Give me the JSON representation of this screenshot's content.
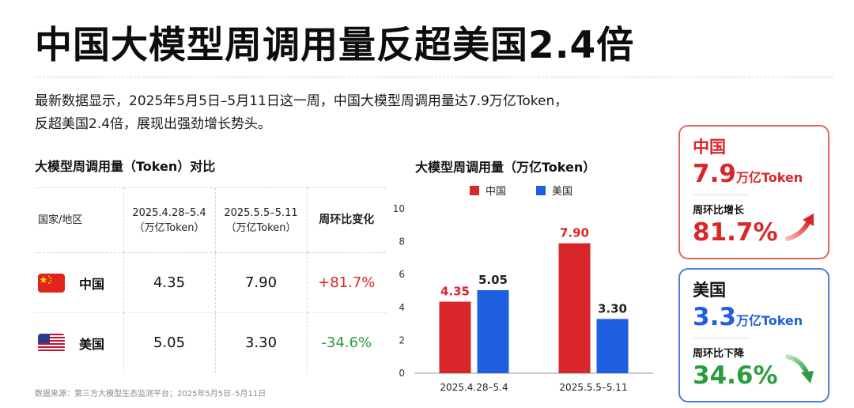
{
  "title": "中国大模型周调用量反超美国2.4倍",
  "description": {
    "line1": "最新数据显示，2025年5月5日–5月11日这一周，中国大模型周调用量达7.9万亿Token，",
    "line2": "反超美国2.4倍，展现出强劲增长势头。"
  },
  "table": {
    "title": "大模型周调用量（Token）对比",
    "headers": {
      "region": "国家/地区",
      "week1": "2025.4.28–5.4",
      "week1_unit": "（万亿Token）",
      "week2": "2025.5.5–5.11",
      "week2_unit": "（万亿Token）",
      "change": "周环比变化"
    },
    "rows": [
      {
        "country": "中国",
        "week1": "4.35",
        "week2": "7.90",
        "change": "+81.7%"
      },
      {
        "country": "美国",
        "week1": "5.05",
        "week2": "3.30",
        "change": "-34.6%"
      }
    ]
  },
  "source": "数据来源：第三方大模型生态监测平台；2025年5月5日–5月11日",
  "colors": {
    "china": "#d9262b",
    "usa": "#1d5fe0",
    "positive": "#d9262b",
    "negative": "#2a9d3c"
  },
  "chart_data": {
    "type": "bar",
    "title": "大模型周调用量（万亿Token）",
    "categories": [
      "2025.4.28–5.4",
      "2025.5.5–5.11"
    ],
    "series": [
      {
        "name": "中国",
        "values": [
          4.35,
          7.9
        ],
        "labels": [
          "4.35",
          "7.90"
        ],
        "color": "#d9262b"
      },
      {
        "name": "美国",
        "values": [
          5.05,
          3.3
        ],
        "labels": [
          "5.05",
          "3.30"
        ],
        "color": "#1d5fe0"
      }
    ],
    "ylim": [
      0,
      10
    ],
    "yticks": [
      "0",
      "2",
      "4",
      "6",
      "8",
      "10"
    ],
    "ytick_values": [
      0,
      2,
      4,
      6,
      8,
      10
    ],
    "legend": "top-center",
    "grid": false
  },
  "cards": {
    "china": {
      "name": "中国",
      "value": "7.9",
      "unit": "万亿Token",
      "sub": "周环比增长",
      "pct": "81.7%",
      "icon": "arrow-up-icon"
    },
    "usa": {
      "name": "美国",
      "value": "3.3",
      "unit": "万亿Token",
      "sub": "周环比下降",
      "pct": "34.6%",
      "icon": "arrow-down-icon"
    }
  }
}
